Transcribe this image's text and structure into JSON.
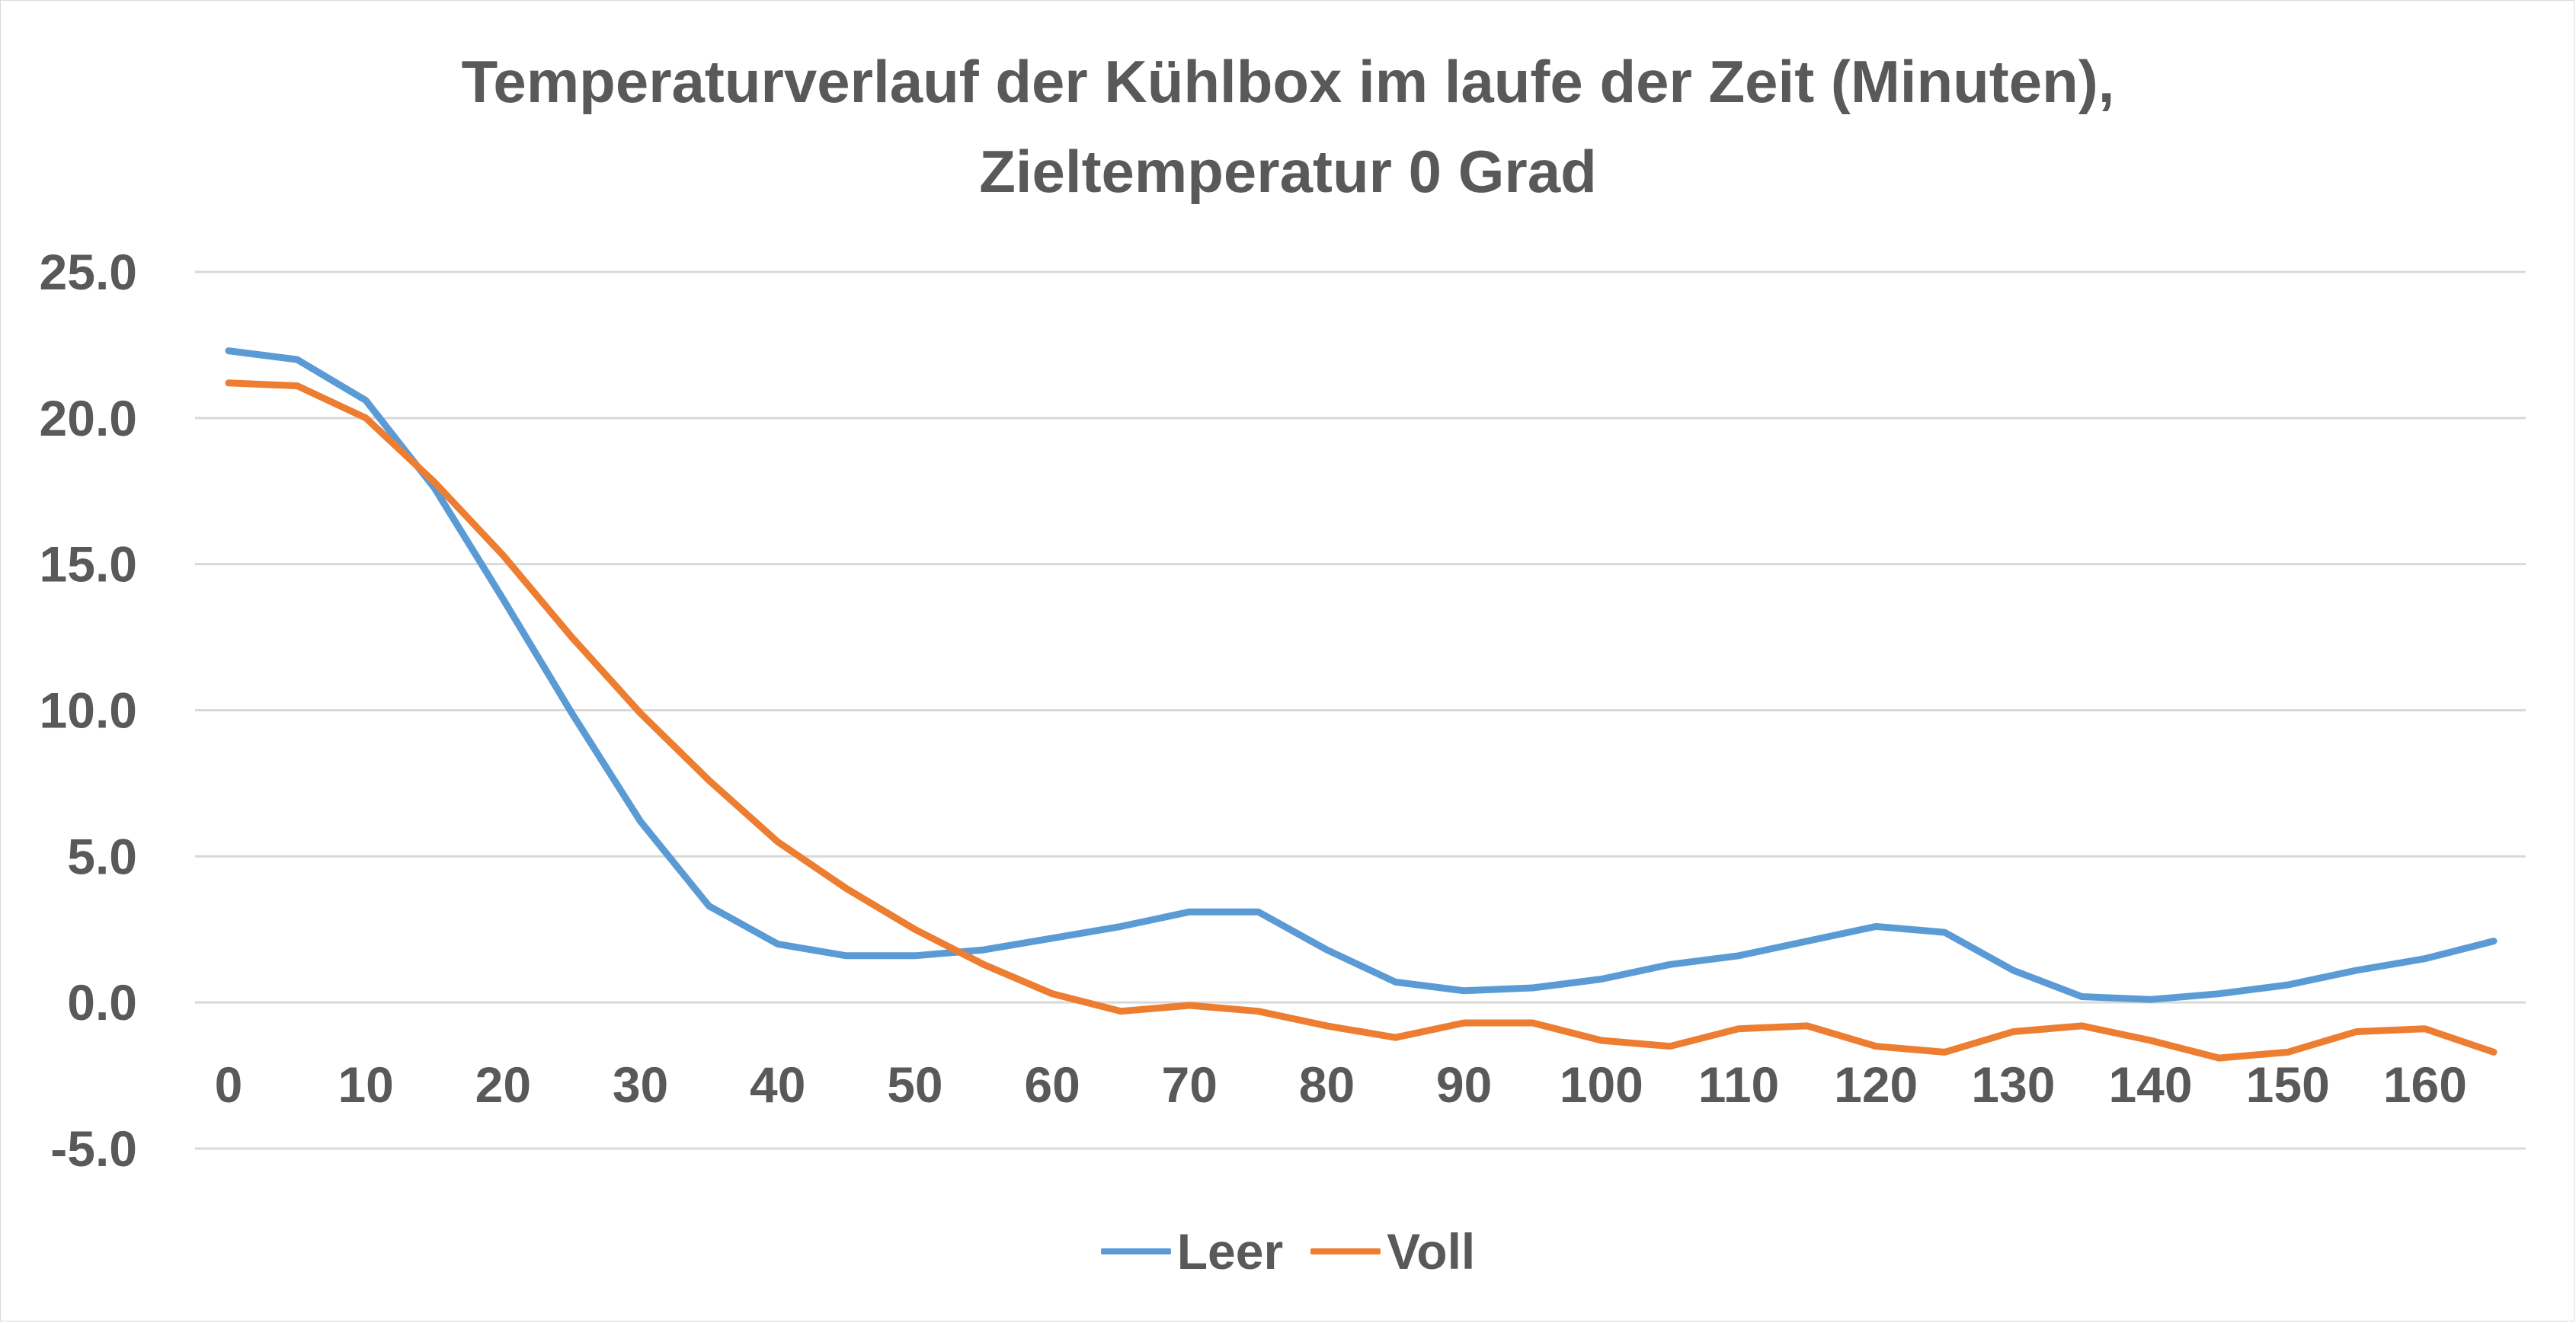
{
  "chart_data": {
    "type": "line",
    "title": "Temperaturverlauf der Kühlbox im laufe der Zeit (Minuten), Zieltemperatur 0 Grad",
    "title_lines": [
      "Temperaturverlauf der Kühlbox im laufe der Zeit (Minuten),",
      "Zieltemperatur 0 Grad"
    ],
    "xlabel": "",
    "ylabel": "",
    "ylim": [
      -5,
      25
    ],
    "y_ticks": [
      "-5.0",
      "0.0",
      "5.0",
      "10.0",
      "15.0",
      "20.0",
      "25.0"
    ],
    "y_tick_values": [
      -5,
      0,
      5,
      10,
      15,
      20,
      25
    ],
    "x_ticks": [
      "0",
      "10",
      "20",
      "30",
      "40",
      "50",
      "60",
      "70",
      "80",
      "90",
      "100",
      "110",
      "120",
      "130",
      "140",
      "150",
      "160"
    ],
    "x_tick_values": [
      0,
      10,
      20,
      30,
      40,
      50,
      60,
      70,
      80,
      90,
      100,
      110,
      120,
      130,
      140,
      150,
      160
    ],
    "xlim": [
      0,
      165
    ],
    "x": [
      0,
      5,
      10,
      15,
      20,
      25,
      30,
      35,
      40,
      45,
      50,
      55,
      60,
      65,
      70,
      75,
      80,
      85,
      90,
      95,
      100,
      105,
      110,
      115,
      120,
      125,
      130,
      135,
      140,
      145,
      150,
      155,
      160,
      165
    ],
    "series": [
      {
        "name": "Leer",
        "color": "#5b9bd5",
        "values": [
          22.3,
          22.0,
          20.6,
          17.6,
          13.8,
          9.9,
          6.2,
          3.3,
          2.0,
          1.6,
          1.6,
          1.8,
          2.2,
          2.6,
          3.1,
          3.1,
          1.8,
          0.7,
          0.4,
          0.5,
          0.8,
          1.3,
          1.6,
          2.1,
          2.6,
          2.4,
          1.1,
          0.2,
          0.1,
          0.3,
          0.6,
          1.1,
          1.5,
          2.1
        ]
      },
      {
        "name": "Voll",
        "color": "#ed7d31",
        "values": [
          21.2,
          21.1,
          20.0,
          17.8,
          15.3,
          12.5,
          9.9,
          7.6,
          5.5,
          3.9,
          2.5,
          1.3,
          0.3,
          -0.3,
          -0.1,
          -0.3,
          -0.8,
          -1.2,
          -0.7,
          -0.7,
          -1.3,
          -1.5,
          -0.9,
          -0.8,
          -1.5,
          -1.7,
          -1.0,
          -0.8,
          -1.3,
          -1.9,
          -1.7,
          -1.0,
          -0.9,
          -1.7
        ]
      }
    ],
    "grid": true,
    "legend_position": "bottom"
  },
  "colors": {
    "text": "#595959",
    "gridline": "#d9d9d9",
    "frame": "#d9d9d9"
  }
}
